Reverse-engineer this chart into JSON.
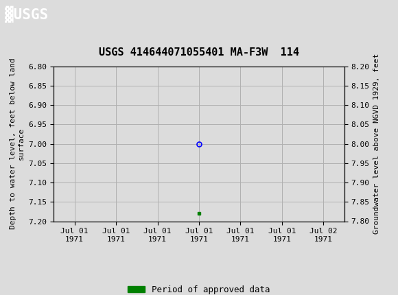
{
  "title": "USGS 414644071055401 MA-F3W  114",
  "usgs_header_color": "#006633",
  "background_color": "#dcdcdc",
  "plot_bg_color": "#dcdcdc",
  "left_ylabel": "Depth to water level, feet below land\nsurface",
  "right_ylabel": "Groundwater level above NGVD 1929, feet",
  "ylim_left_top": 6.8,
  "ylim_left_bottom": 7.2,
  "ylim_right_top": 8.2,
  "ylim_right_bottom": 7.8,
  "y_ticks_left": [
    6.8,
    6.85,
    6.9,
    6.95,
    7.0,
    7.05,
    7.1,
    7.15,
    7.2
  ],
  "y_ticks_right": [
    8.2,
    8.15,
    8.1,
    8.05,
    8.0,
    7.95,
    7.9,
    7.85,
    7.8
  ],
  "x_tick_labels": [
    "Jul 01\n1971",
    "Jul 01\n1971",
    "Jul 01\n1971",
    "Jul 01\n1971",
    "Jul 01\n1971",
    "Jul 01\n1971",
    "Jul 02\n1971"
  ],
  "x_tick_positions": [
    0,
    1,
    2,
    3,
    4,
    5,
    6
  ],
  "xlim": [
    -0.5,
    6.5
  ],
  "blue_marker_x": 3,
  "blue_marker_y": 7.0,
  "green_marker_x": 3,
  "green_marker_y": 7.18,
  "grid_color": "#b0b0b0",
  "title_fontsize": 11,
  "tick_fontsize": 8,
  "ylabel_fontsize": 8,
  "legend_label": "Period of approved data",
  "legend_color": "#008000"
}
